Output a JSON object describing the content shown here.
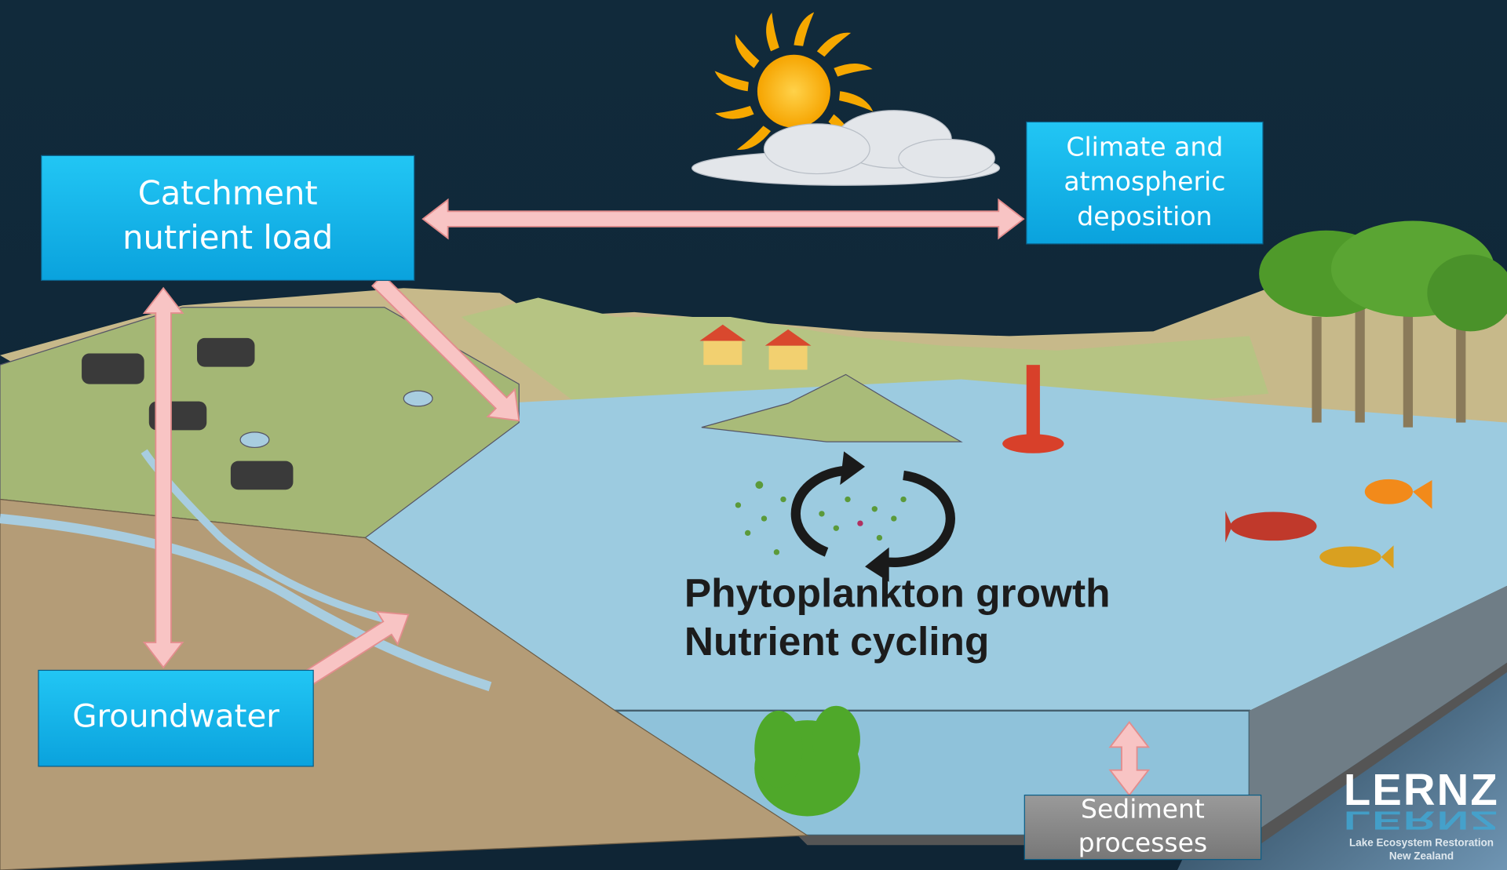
{
  "boxes": [
    {
      "lines": [
        "Catchment",
        "nutrient load"
      ]
    },
    {
      "lines": [
        "Climate and",
        "atmospheric",
        "deposition"
      ]
    },
    {
      "lines": [
        "Groundwater"
      ]
    },
    {
      "lines": [
        "Sediment",
        "processes"
      ]
    }
  ],
  "center_text": [
    "Phytoplankton growth",
    "Nutrient cycling"
  ],
  "logo": {
    "name": "LERNZ",
    "subtitle": [
      "Lake Ecosystem Restoration",
      "New Zealand"
    ]
  }
}
